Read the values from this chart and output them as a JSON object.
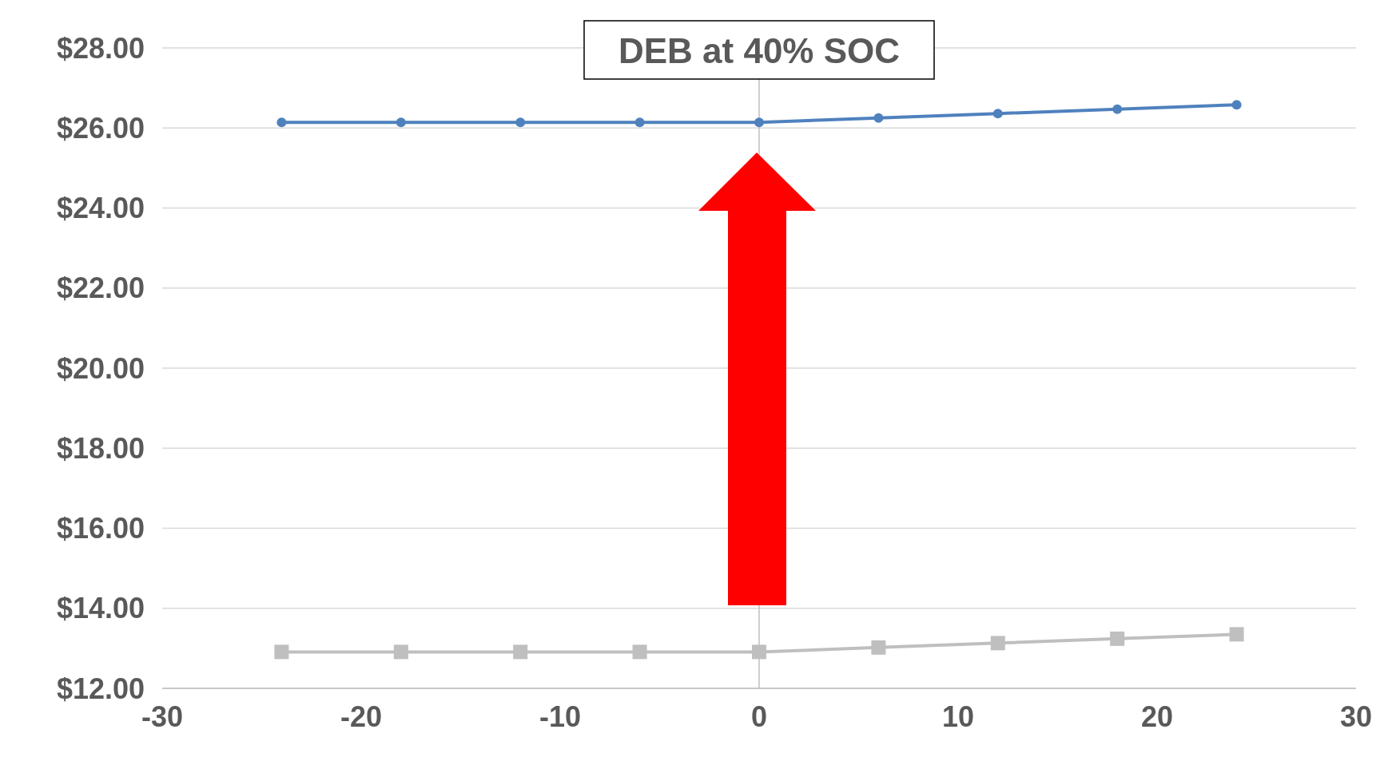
{
  "chart_data": {
    "type": "line",
    "title": "DEB at 40% SOC",
    "x": [
      -24,
      -18,
      -12,
      -6,
      0,
      6,
      12,
      18,
      24
    ],
    "series": [
      {
        "color": "#4f81bd",
        "marker": "circle",
        "values": [
          26.14,
          26.14,
          26.14,
          26.14,
          26.14,
          26.25,
          26.36,
          26.47,
          26.58
        ]
      },
      {
        "color": "#bfbfbf",
        "marker": "square",
        "values": [
          12.91,
          12.91,
          12.91,
          12.91,
          12.91,
          13.02,
          13.13,
          13.24,
          13.35
        ]
      }
    ],
    "xlim": [
      -30,
      30
    ],
    "xticks": [
      -30,
      -20,
      -10,
      0,
      10,
      20,
      30
    ],
    "ylim": [
      12,
      28
    ],
    "yticks": [
      {
        "value": 12,
        "label": "$12.00"
      },
      {
        "value": 14,
        "label": "$14.00"
      },
      {
        "value": 16,
        "label": "$16.00"
      },
      {
        "value": 18,
        "label": "$18.00"
      },
      {
        "value": 20,
        "label": "$20.00"
      },
      {
        "value": 22,
        "label": "$22.00"
      },
      {
        "value": 24,
        "label": "$24.00"
      },
      {
        "value": 26,
        "label": "$26.00"
      },
      {
        "value": 28,
        "label": "$28.00"
      }
    ],
    "grid": "y",
    "ref_lines": [
      {
        "axis": "x",
        "value": 0,
        "color": "#bfbfbf"
      }
    ]
  }
}
